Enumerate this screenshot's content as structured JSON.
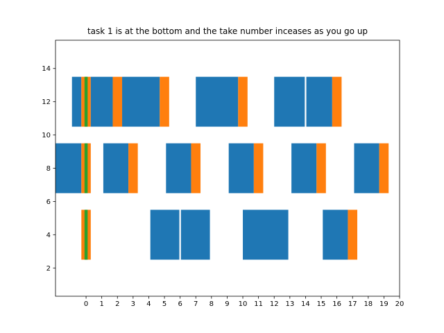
{
  "chart_data": {
    "type": "bar",
    "title": "task 1 is at the bottom and the take number inceases as you go up",
    "xlabel": "",
    "ylabel": "",
    "xlim": [
      -1.95,
      20
    ],
    "ylim": [
      0.3,
      15.7
    ],
    "xticks": [
      "0",
      "1",
      "2",
      "3",
      "4",
      "5",
      "6",
      "7",
      "8",
      "9",
      "10",
      "11",
      "12",
      "13",
      "14",
      "15",
      "16",
      "17",
      "18",
      "19",
      "20"
    ],
    "yticks": [
      "2",
      "4",
      "6",
      "8",
      "10",
      "12",
      "14"
    ],
    "grid": false,
    "legend": "none",
    "colors": {
      "blue": "#1f77b4",
      "orange": "#ff7f0e",
      "green": "#2ca02c"
    },
    "series": [
      {
        "task": 1,
        "y_range": [
          2.5,
          5.5
        ],
        "bars": [
          {
            "start": -0.3,
            "end": 0.3,
            "color": "orange"
          },
          {
            "start": -0.1,
            "end": 0.1,
            "color": "green"
          },
          {
            "start": 4.1,
            "end": 5.95,
            "color": "blue"
          },
          {
            "start": 6.05,
            "end": 7.9,
            "color": "blue"
          },
          {
            "start": 10.0,
            "end": 12.9,
            "color": "blue"
          },
          {
            "start": 15.1,
            "end": 16.7,
            "color": "blue"
          },
          {
            "start": 16.7,
            "end": 17.3,
            "color": "orange"
          }
        ]
      },
      {
        "task": 2,
        "y_range": [
          6.5,
          9.5
        ],
        "bars": [
          {
            "start": -1.95,
            "end": -0.3,
            "color": "blue"
          },
          {
            "start": -0.3,
            "end": 0.3,
            "color": "orange"
          },
          {
            "start": -0.1,
            "end": 0.1,
            "color": "green"
          },
          {
            "start": 1.1,
            "end": 2.7,
            "color": "blue"
          },
          {
            "start": 2.7,
            "end": 3.3,
            "color": "orange"
          },
          {
            "start": 5.1,
            "end": 6.7,
            "color": "blue"
          },
          {
            "start": 6.7,
            "end": 7.3,
            "color": "orange"
          },
          {
            "start": 9.1,
            "end": 10.7,
            "color": "blue"
          },
          {
            "start": 10.7,
            "end": 11.3,
            "color": "orange"
          },
          {
            "start": 13.1,
            "end": 14.7,
            "color": "blue"
          },
          {
            "start": 14.7,
            "end": 15.3,
            "color": "orange"
          },
          {
            "start": 17.1,
            "end": 18.7,
            "color": "blue"
          },
          {
            "start": 18.7,
            "end": 19.3,
            "color": "orange"
          }
        ]
      },
      {
        "task": 3,
        "y_range": [
          10.5,
          13.5
        ],
        "bars": [
          {
            "start": -0.9,
            "end": -0.3,
            "color": "blue"
          },
          {
            "start": -0.3,
            "end": 0.3,
            "color": "orange"
          },
          {
            "start": -0.1,
            "end": 0.1,
            "color": "green"
          },
          {
            "start": 0.3,
            "end": 1.7,
            "color": "blue"
          },
          {
            "start": 1.7,
            "end": 2.3,
            "color": "orange"
          },
          {
            "start": 2.3,
            "end": 4.7,
            "color": "blue"
          },
          {
            "start": 4.7,
            "end": 5.3,
            "color": "orange"
          },
          {
            "start": 7.0,
            "end": 9.7,
            "color": "blue"
          },
          {
            "start": 9.7,
            "end": 10.3,
            "color": "orange"
          },
          {
            "start": 12.0,
            "end": 13.95,
            "color": "blue"
          },
          {
            "start": 14.05,
            "end": 15.7,
            "color": "blue"
          },
          {
            "start": 15.7,
            "end": 16.3,
            "color": "orange"
          }
        ]
      }
    ]
  }
}
